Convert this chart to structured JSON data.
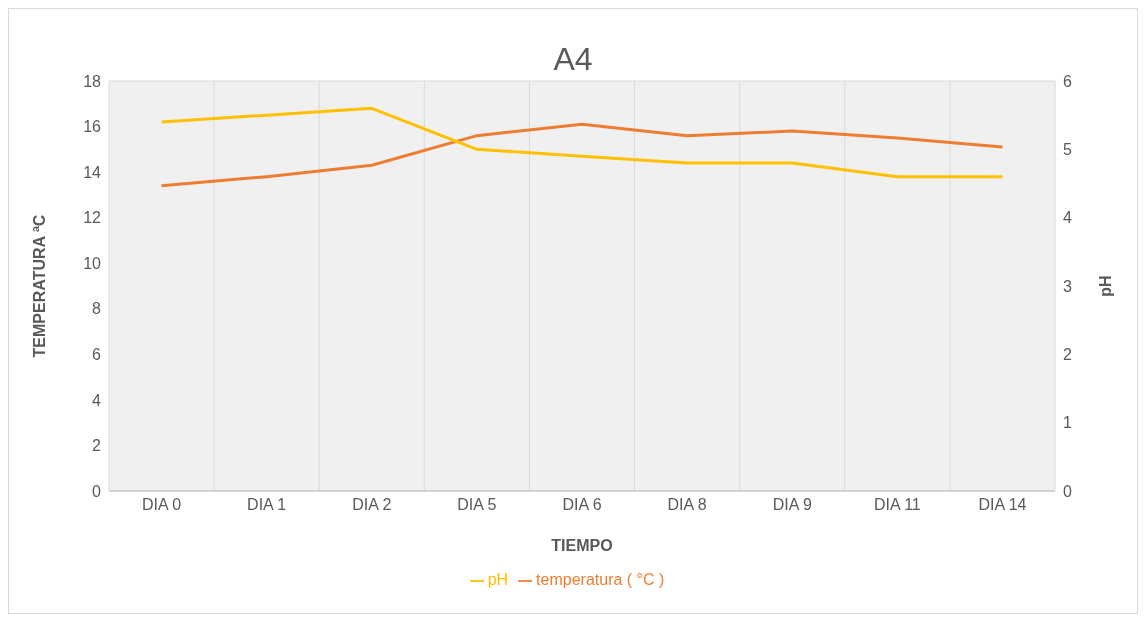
{
  "chart_data": {
    "type": "line",
    "title": "A4",
    "xlabel": "TIEMPO",
    "ylabel": "TEMPERATURA ªC",
    "y2label": "pH",
    "categories": [
      "DIA 0",
      "DIA 1",
      "DIA 2",
      "DIA 5",
      "DIA 6",
      "DIA 8",
      "DIA 9",
      "DIA 11",
      "DIA 14"
    ],
    "series": [
      {
        "name": "temperatura  ( °C )",
        "color": "#ed7d31",
        "values": [
          13.4,
          13.8,
          14.3,
          15.6,
          16.1,
          15.6,
          15.8,
          15.5,
          15.1
        ]
      },
      {
        "name": "pH",
        "color": "#ffc000",
        "axis": "y2",
        "values": [
          5.4,
          5.5,
          5.6,
          5.0,
          4.9,
          4.8,
          4.8,
          4.6,
          4.6
        ]
      }
    ],
    "ylim": [
      0,
      18
    ],
    "yticks": [
      0,
      2,
      4,
      6,
      8,
      10,
      12,
      14,
      16,
      18
    ],
    "y2lim": [
      0,
      6
    ],
    "y2ticks": [
      0,
      1,
      2,
      3,
      4,
      5,
      6
    ],
    "grid": true,
    "legend": "bottom",
    "marker": "none",
    "line_style": "solid"
  }
}
